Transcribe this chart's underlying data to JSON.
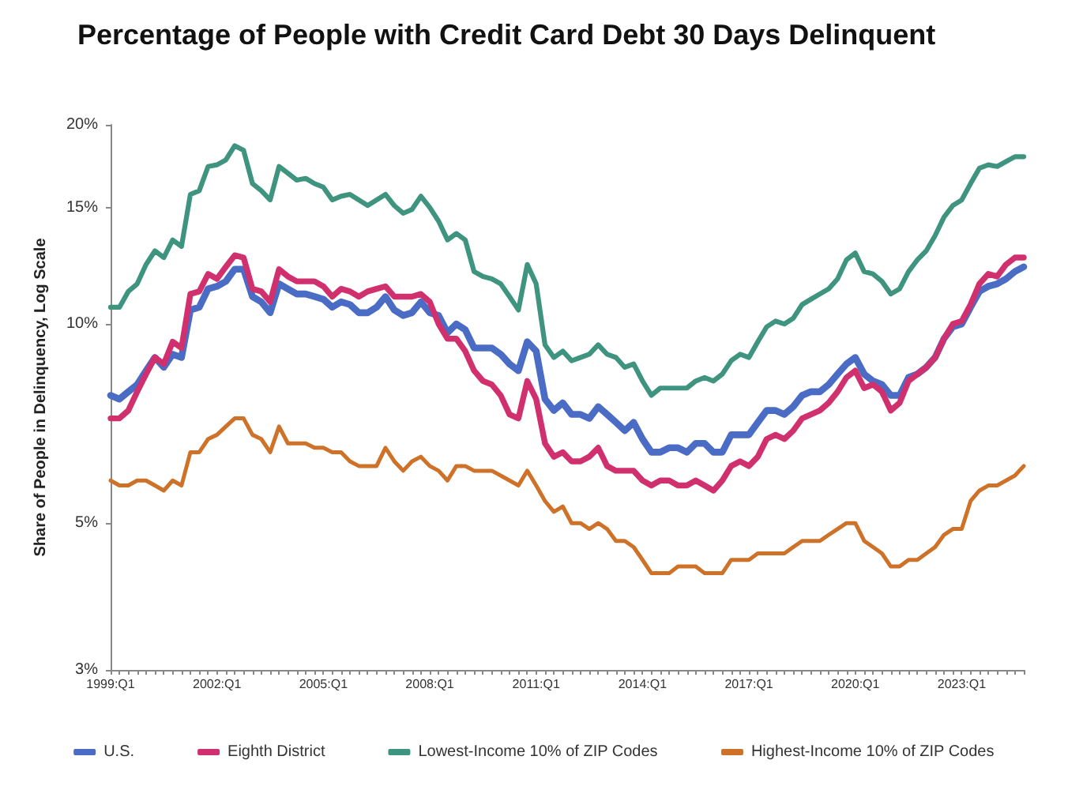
{
  "chart_data": {
    "type": "line",
    "title": "Percentage of People with Credit Card Debt 30 Days Delinquent",
    "ylabel": "Share of People in Delinquency, Log Scale",
    "categories": [
      "1999:Q1",
      null,
      null,
      null,
      null,
      null,
      null,
      null,
      null,
      null,
      null,
      null,
      "2002:Q1",
      null,
      null,
      null,
      null,
      null,
      null,
      null,
      null,
      null,
      null,
      null,
      "2005:Q1",
      null,
      null,
      null,
      null,
      null,
      null,
      null,
      null,
      null,
      null,
      null,
      "2008:Q1",
      null,
      null,
      null,
      null,
      null,
      null,
      null,
      null,
      null,
      null,
      null,
      "2011:Q1",
      null,
      null,
      null,
      null,
      null,
      null,
      null,
      null,
      null,
      null,
      null,
      "2014:Q1",
      null,
      null,
      null,
      null,
      null,
      null,
      null,
      null,
      null,
      null,
      null,
      "2017:Q1",
      null,
      null,
      null,
      null,
      null,
      null,
      null,
      null,
      null,
      null,
      null,
      "2020:Q1",
      null,
      null,
      null,
      null,
      null,
      null,
      null,
      null,
      null,
      null,
      null,
      "2023:Q1",
      null,
      null,
      null,
      null,
      null,
      null,
      null
    ],
    "series": [
      {
        "name": "U.S.",
        "color": "#4a6cc4",
        "values": [
          7.8,
          7.7,
          7.9,
          8.1,
          8.5,
          8.9,
          8.6,
          9.0,
          8.9,
          10.5,
          10.6,
          11.3,
          11.4,
          11.6,
          12.1,
          12.1,
          11.0,
          10.8,
          10.4,
          11.5,
          11.3,
          11.1,
          11.1,
          11.0,
          10.9,
          10.6,
          10.8,
          10.7,
          10.4,
          10.4,
          10.6,
          11.0,
          10.5,
          10.3,
          10.4,
          10.8,
          10.4,
          10.3,
          9.7,
          10.0,
          9.8,
          9.2,
          9.2,
          9.2,
          9.0,
          8.7,
          8.5,
          9.4,
          9.1,
          7.7,
          7.4,
          7.6,
          7.3,
          7.3,
          7.2,
          7.5,
          7.3,
          7.1,
          6.9,
          7.1,
          6.7,
          6.4,
          6.4,
          6.5,
          6.5,
          6.4,
          6.6,
          6.6,
          6.4,
          6.4,
          6.8,
          6.8,
          6.8,
          7.1,
          7.4,
          7.4,
          7.3,
          7.5,
          7.8,
          7.9,
          7.9,
          8.1,
          8.4,
          8.7,
          8.9,
          8.4,
          8.2,
          8.1,
          7.8,
          7.8,
          8.3,
          8.4,
          8.6,
          8.9,
          9.5,
          9.9,
          10.0,
          10.6,
          11.2,
          11.4,
          11.5,
          11.7,
          12.0,
          12.2
        ]
      },
      {
        "name": "Eighth District",
        "color": "#d1306e",
        "values": [
          7.2,
          7.2,
          7.4,
          7.9,
          8.4,
          8.9,
          8.7,
          9.4,
          9.2,
          11.1,
          11.2,
          11.9,
          11.7,
          12.2,
          12.7,
          12.6,
          11.3,
          11.2,
          10.8,
          12.1,
          11.8,
          11.6,
          11.6,
          11.6,
          11.4,
          11.0,
          11.3,
          11.2,
          11.0,
          11.2,
          11.3,
          11.4,
          11.0,
          11.0,
          11.0,
          11.1,
          10.8,
          10.0,
          9.5,
          9.5,
          9.1,
          8.5,
          8.2,
          8.1,
          7.8,
          7.3,
          7.2,
          8.2,
          7.7,
          6.6,
          6.3,
          6.4,
          6.2,
          6.2,
          6.3,
          6.5,
          6.1,
          6.0,
          6.0,
          6.0,
          5.8,
          5.7,
          5.8,
          5.8,
          5.7,
          5.7,
          5.8,
          5.7,
          5.6,
          5.8,
          6.1,
          6.2,
          6.1,
          6.3,
          6.7,
          6.8,
          6.7,
          6.9,
          7.2,
          7.3,
          7.4,
          7.6,
          7.9,
          8.3,
          8.5,
          8.0,
          8.1,
          7.9,
          7.4,
          7.6,
          8.2,
          8.4,
          8.6,
          8.9,
          9.5,
          10.0,
          10.1,
          10.7,
          11.5,
          11.9,
          11.8,
          12.3,
          12.6,
          12.6
        ]
      },
      {
        "name": "Lowest-Income 10% of ZIP Codes",
        "color": "#3f9480",
        "values": [
          10.6,
          10.6,
          11.2,
          11.5,
          12.3,
          12.9,
          12.6,
          13.4,
          13.1,
          15.7,
          15.9,
          17.3,
          17.4,
          17.7,
          18.6,
          18.3,
          16.3,
          15.9,
          15.4,
          17.3,
          16.9,
          16.5,
          16.6,
          16.3,
          16.1,
          15.4,
          15.6,
          15.7,
          15.4,
          15.1,
          15.4,
          15.7,
          15.1,
          14.7,
          14.9,
          15.6,
          15.0,
          14.3,
          13.4,
          13.7,
          13.4,
          12.0,
          11.8,
          11.7,
          11.5,
          11.0,
          10.5,
          12.3,
          11.5,
          9.3,
          8.9,
          9.1,
          8.8,
          8.9,
          9.0,
          9.3,
          9.0,
          8.9,
          8.6,
          8.7,
          8.2,
          7.8,
          8.0,
          8.0,
          8.0,
          8.0,
          8.2,
          8.3,
          8.2,
          8.4,
          8.8,
          9.0,
          8.9,
          9.4,
          9.9,
          10.1,
          10.0,
          10.2,
          10.7,
          10.9,
          11.1,
          11.3,
          11.7,
          12.5,
          12.8,
          12.0,
          11.9,
          11.6,
          11.1,
          11.3,
          12.0,
          12.5,
          12.9,
          13.6,
          14.5,
          15.1,
          15.4,
          16.3,
          17.2,
          17.4,
          17.3,
          17.6,
          17.9,
          17.9
        ]
      },
      {
        "name": "Highest-Income 10% of ZIP Codes",
        "color": "#cd7228",
        "values": [
          5.8,
          5.7,
          5.7,
          5.8,
          5.8,
          5.7,
          5.6,
          5.8,
          5.7,
          6.4,
          6.4,
          6.7,
          6.8,
          7.0,
          7.2,
          7.2,
          6.8,
          6.7,
          6.4,
          7.0,
          6.6,
          6.6,
          6.6,
          6.5,
          6.5,
          6.4,
          6.4,
          6.2,
          6.1,
          6.1,
          6.1,
          6.5,
          6.2,
          6.0,
          6.2,
          6.3,
          6.1,
          6.0,
          5.8,
          6.1,
          6.1,
          6.0,
          6.0,
          6.0,
          5.9,
          5.8,
          5.7,
          6.0,
          5.7,
          5.4,
          5.2,
          5.3,
          5.0,
          5.0,
          4.9,
          5.0,
          4.9,
          4.7,
          4.7,
          4.6,
          4.4,
          4.2,
          4.2,
          4.2,
          4.3,
          4.3,
          4.3,
          4.2,
          4.2,
          4.2,
          4.4,
          4.4,
          4.4,
          4.5,
          4.5,
          4.5,
          4.5,
          4.6,
          4.7,
          4.7,
          4.7,
          4.8,
          4.9,
          5.0,
          5.0,
          4.7,
          4.6,
          4.5,
          4.3,
          4.3,
          4.4,
          4.4,
          4.5,
          4.6,
          4.8,
          4.9,
          4.9,
          5.4,
          5.6,
          5.7,
          5.7,
          5.8,
          5.9,
          6.1
        ]
      }
    ],
    "ylim": [
      3,
      20
    ],
    "yticks": [
      {
        "value": 3,
        "label": "3%"
      },
      {
        "value": 5,
        "label": "5%"
      },
      {
        "value": 10,
        "label": "10%"
      },
      {
        "value": 15,
        "label": "15%"
      },
      {
        "value": 20,
        "label": "20%"
      }
    ],
    "log": "y",
    "legend": "bottom",
    "marker": "none"
  }
}
